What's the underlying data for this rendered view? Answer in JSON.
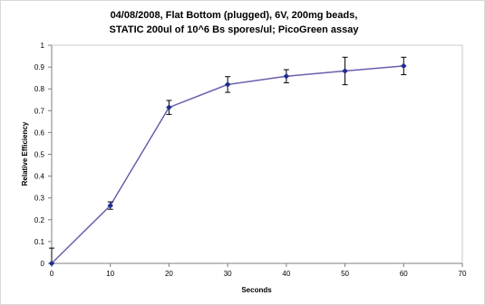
{
  "chart_data": {
    "type": "line",
    "title": [
      "04/08/2008, Flat Bottom (plugged), 6V, 200mg beads,",
      "STATIC 200ul of 10^6 Bs spores/ul; PicoGreen assay"
    ],
    "xlabel": "Seconds",
    "ylabel": "Relative Efficiency",
    "xlim": [
      0,
      70
    ],
    "ylim": [
      0,
      1
    ],
    "x_ticks": [
      0,
      10,
      20,
      30,
      40,
      50,
      60,
      70
    ],
    "y_ticks": [
      0,
      0.1,
      0.2,
      0.3,
      0.4,
      0.5,
      0.6,
      0.7,
      0.8,
      0.9,
      1
    ],
    "x_tick_labels": [
      "0",
      "10",
      "20",
      "30",
      "40",
      "50",
      "60",
      "70"
    ],
    "y_tick_labels": [
      "0",
      "0.1",
      "0.2",
      "0.3",
      "0.4",
      "0.5",
      "0.6",
      "0.7",
      "0.8",
      "0.9",
      "1"
    ],
    "grid": false,
    "legend": "none",
    "series": [
      {
        "color": "#6a5fad",
        "marker_color": "#1f2f8f",
        "x": [
          0,
          10,
          20,
          30,
          40,
          50,
          60
        ],
        "y": [
          0.0,
          0.265,
          0.715,
          0.82,
          0.858,
          0.882,
          0.905
        ],
        "error": [
          0.07,
          0.017,
          0.032,
          0.036,
          0.03,
          0.063,
          0.04
        ]
      }
    ]
  }
}
